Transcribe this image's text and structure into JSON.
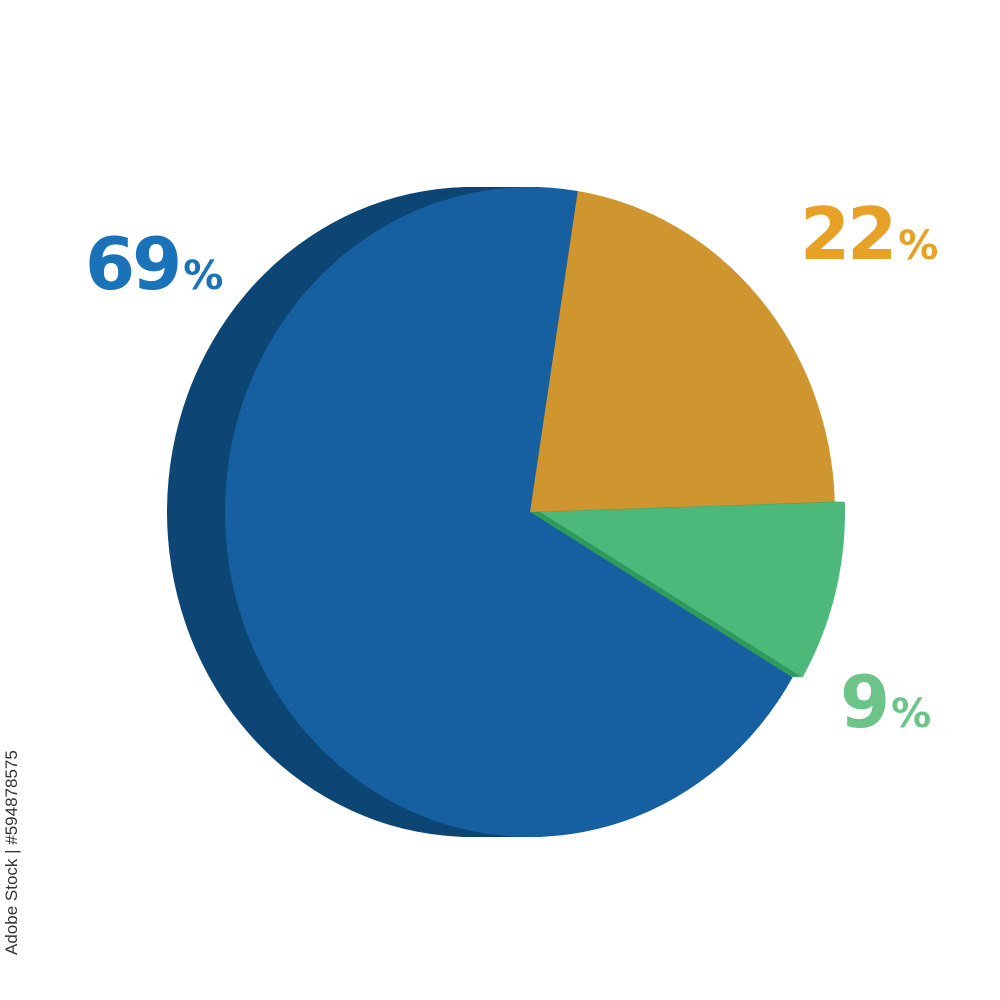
{
  "chart_data": {
    "type": "pie",
    "style": "3d",
    "slices": [
      {
        "label": "22%",
        "value": 22,
        "color": "#CF952F",
        "side_color": "#8A6224"
      },
      {
        "label": "9%",
        "value": 9,
        "color": "#4CB97A",
        "side_color": "#2E9A5C",
        "exploded": true
      },
      {
        "label": "69%",
        "value": 69,
        "color": "#1660A2",
        "side_color": "#0D4674"
      }
    ],
    "label_colors": {
      "69%": "#1A72B9",
      "22%": "#E6A126",
      "9%": "#6CC488"
    },
    "legend": "none"
  },
  "labels": {
    "blue": {
      "num": "69",
      "pct": "%"
    },
    "orange": {
      "num": "22",
      "pct": "%"
    },
    "green": {
      "num": "9",
      "pct": "%"
    }
  },
  "watermark": {
    "text": "Adobe Stock | #594878575"
  }
}
